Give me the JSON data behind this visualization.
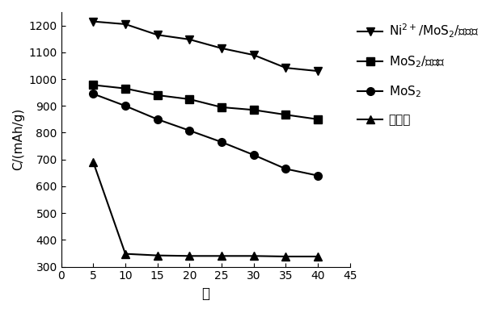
{
  "x": [
    5,
    10,
    15,
    20,
    25,
    30,
    35,
    40
  ],
  "ni_mos2_graphene": [
    1215,
    1205,
    1165,
    1148,
    1115,
    1090,
    1042,
    1030
  ],
  "mos2_graphene": [
    978,
    965,
    940,
    925,
    895,
    885,
    867,
    850
  ],
  "mos2": [
    945,
    900,
    850,
    808,
    765,
    717,
    665,
    640
  ],
  "graphene_x": [
    5,
    10,
    15,
    20,
    25,
    30,
    35,
    40
  ],
  "graphene_y": [
    690,
    348,
    342,
    340,
    340,
    340,
    338,
    338
  ],
  "xlim": [
    0,
    45
  ],
  "ylim": [
    300,
    1250
  ],
  "yticks": [
    300,
    400,
    500,
    600,
    700,
    800,
    900,
    1000,
    1100,
    1200
  ],
  "xticks": [
    0,
    5,
    10,
    15,
    20,
    25,
    30,
    35,
    40,
    45
  ],
  "xlabel": "圈",
  "ylabel": "C/(mAh/g)",
  "label_ni": "Ni$^{2+}$/MoS$_2$/石墨烯",
  "label_mos2g": "MoS$_2$/石墨烯",
  "label_mos2": "MoS$_2$",
  "label_graphene": "石墨烯",
  "line_color": "#000000",
  "marker_ni": "v",
  "marker_mos2g": "s",
  "marker_mos2": "o",
  "marker_graphene": "^",
  "markersize": 7,
  "linewidth": 1.5,
  "annotation_fontsize": 11
}
